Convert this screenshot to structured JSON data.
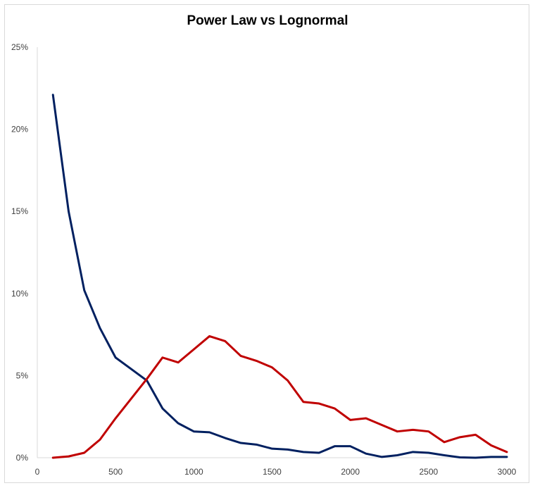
{
  "chart_data": {
    "type": "line",
    "title": "Power Law vs Lognormal",
    "xlabel": "",
    "ylabel": "",
    "xlim": [
      0,
      3000
    ],
    "ylim": [
      0,
      0.25
    ],
    "x_ticks": [
      0,
      500,
      1000,
      1500,
      2000,
      2500,
      3000
    ],
    "x_tick_labels": [
      "0",
      "500",
      "1000",
      "1500",
      "2000",
      "2500",
      "3000"
    ],
    "y_ticks": [
      0,
      0.05,
      0.1,
      0.15,
      0.2,
      0.25
    ],
    "y_tick_labels": [
      "0%",
      "5%",
      "10%",
      "15%",
      "20%",
      "25%"
    ],
    "grid": false,
    "legend": false,
    "x": [
      100,
      200,
      300,
      400,
      500,
      600,
      700,
      800,
      900,
      1000,
      1100,
      1200,
      1300,
      1400,
      1500,
      1600,
      1700,
      1800,
      1900,
      2000,
      2100,
      2200,
      2300,
      2400,
      2500,
      2600,
      2700,
      2800,
      2900,
      3000
    ],
    "series": [
      {
        "color": "#002060",
        "values": [
          0.221,
          0.15,
          0.102,
          0.079,
          0.061,
          0.054,
          0.047,
          0.03,
          0.021,
          0.016,
          0.0155,
          0.012,
          0.009,
          0.008,
          0.0055,
          0.005,
          0.0035,
          0.003,
          0.007,
          0.007,
          0.0025,
          0.0005,
          0.0015,
          0.0035,
          0.003,
          0.0015,
          0.0002,
          0.0,
          0.0005,
          0.0005
        ]
      },
      {
        "color": "#C00000",
        "values": [
          0.0,
          0.0008,
          0.003,
          0.011,
          0.024,
          0.036,
          0.048,
          0.061,
          0.058,
          0.066,
          0.074,
          0.071,
          0.062,
          0.059,
          0.055,
          0.047,
          0.034,
          0.033,
          0.03,
          0.023,
          0.024,
          0.02,
          0.016,
          0.017,
          0.016,
          0.0095,
          0.0125,
          0.014,
          0.0075,
          0.0035
        ]
      }
    ]
  }
}
